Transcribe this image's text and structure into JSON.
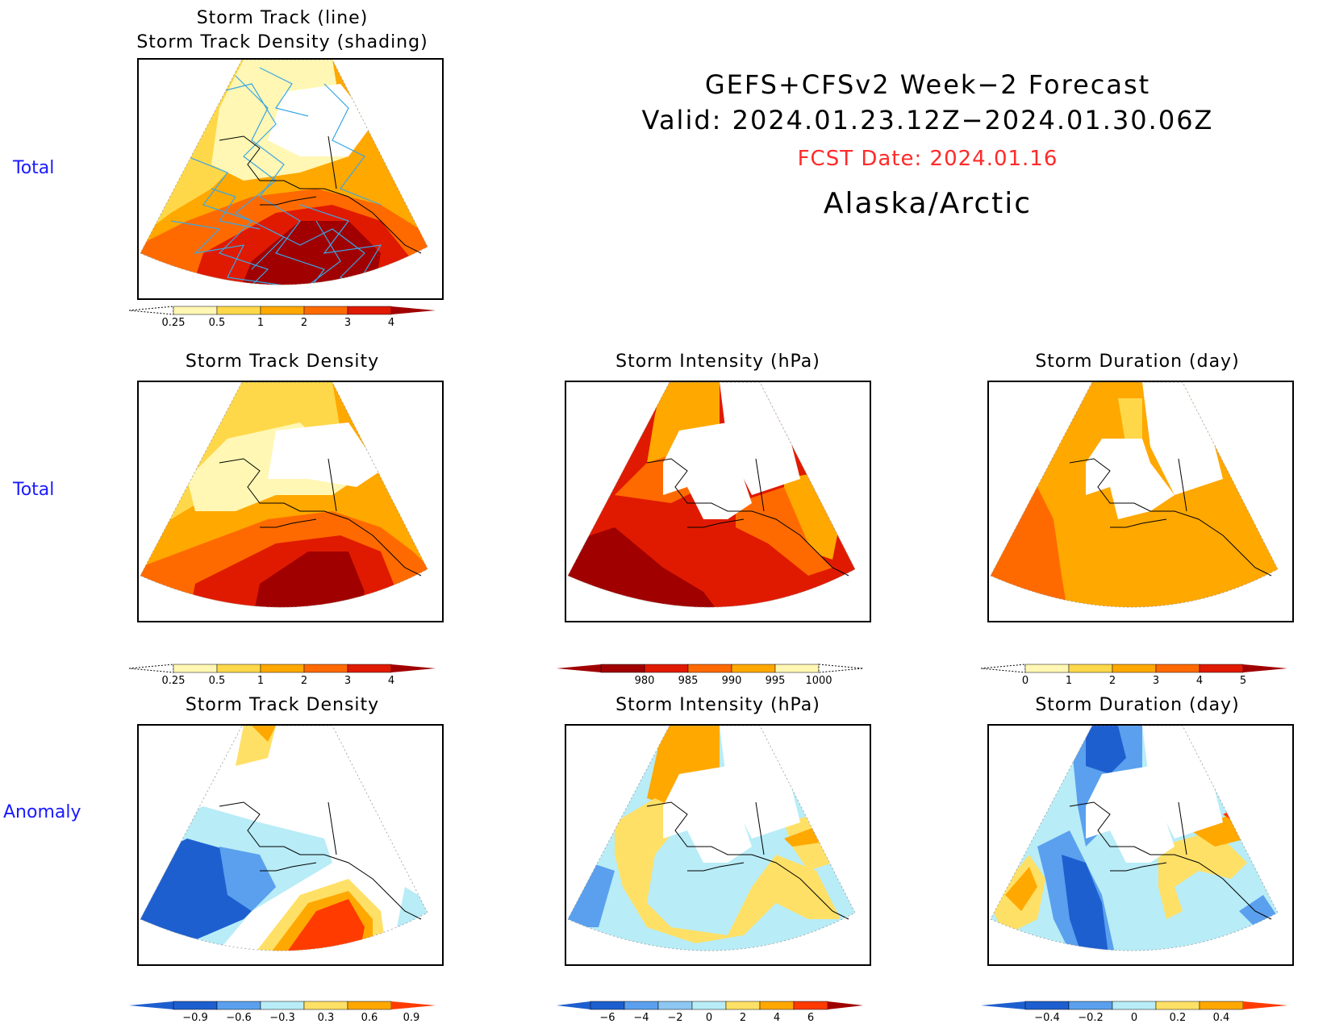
{
  "header": {
    "title": "GEFS+CFSv2 Week−2 Forecast",
    "valid": "Valid: 2024.01.23.12Z−2024.01.30.06Z",
    "fcst_date": "FCST Date: 2024.01.16",
    "region": "Alaska/Arctic"
  },
  "rows": {
    "row1": "Total",
    "row2": "Total",
    "row3": "Anomaly"
  },
  "panels": {
    "p1": {
      "title_line1": "Storm Track (line)",
      "title_line2": "Storm Track Density (shading)"
    },
    "p2": {
      "title": "Storm Track Density"
    },
    "p3": {
      "title": "Storm Intensity (hPa)"
    },
    "p4": {
      "title": "Storm Duration (day)"
    },
    "p5": {
      "title": "Storm Track Density"
    },
    "p6": {
      "title": "Storm Intensity (hPa)"
    },
    "p7": {
      "title": "Storm Duration (day)"
    }
  },
  "colors": {
    "warm": [
      "#fff7b3",
      "#ffd84a",
      "#ffa800",
      "#ff6a00",
      "#e01a00",
      "#a00000"
    ],
    "cool": [
      "#1e5fd0",
      "#5aa0ee",
      "#b8ecf7"
    ],
    "track_line": "#3aa6e6",
    "title_text": "#000000",
    "row_label": "#1a1aff",
    "fcst_text": "#ff2a2a"
  },
  "chart_data": [
    {
      "type": "heatmap",
      "id": "storm-track-density-total-with-tracks",
      "title": "Storm Track (line) / Storm Track Density (shading)",
      "colorbar": {
        "ticks": [
          "0.25",
          "0.5",
          "1",
          "2",
          "3",
          "4"
        ],
        "colors": [
          "#fff7b3",
          "#ffd84a",
          "#ffa800",
          "#ff6a00",
          "#e01a00",
          "#a00000"
        ],
        "extend": "both"
      }
    },
    {
      "type": "heatmap",
      "id": "storm-track-density-total",
      "title": "Storm Track Density",
      "colorbar": {
        "ticks": [
          "0.25",
          "0.5",
          "1",
          "2",
          "3",
          "4"
        ],
        "colors": [
          "#fff7b3",
          "#ffd84a",
          "#ffa800",
          "#ff6a00",
          "#e01a00",
          "#a00000"
        ],
        "extend": "both"
      }
    },
    {
      "type": "heatmap",
      "id": "storm-intensity-total",
      "title": "Storm Intensity (hPa)",
      "colorbar": {
        "ticks": [
          "980",
          "985",
          "990",
          "995",
          "1000"
        ],
        "colors": [
          "#a00000",
          "#e01a00",
          "#ff6a00",
          "#ffa800",
          "#fff7b3"
        ],
        "extend": "both"
      }
    },
    {
      "type": "heatmap",
      "id": "storm-duration-total",
      "title": "Storm Duration (day)",
      "colorbar": {
        "ticks": [
          "0",
          "1",
          "2",
          "3",
          "4",
          "5"
        ],
        "colors": [
          "#fff7b3",
          "#ffd84a",
          "#ffa800",
          "#ff6a00",
          "#e01a00",
          "#a00000"
        ],
        "extend": "both"
      }
    },
    {
      "type": "heatmap",
      "id": "storm-track-density-anomaly",
      "title": "Storm Track Density",
      "colorbar": {
        "ticks": [
          "−0.9",
          "−0.6",
          "−0.3",
          "0.3",
          "0.6",
          "0.9"
        ],
        "colors": [
          "#1e5fd0",
          "#5aa0ee",
          "#b8ecf7",
          "#ffffff",
          "#ffe066",
          "#ffa800",
          "#ff3b00"
        ],
        "extend": "both"
      }
    },
    {
      "type": "heatmap",
      "id": "storm-intensity-anomaly",
      "title": "Storm Intensity (hPa)",
      "colorbar": {
        "ticks": [
          "−6",
          "−4",
          "−2",
          "0",
          "2",
          "4",
          "6"
        ],
        "colors": [
          "#1e5fd0",
          "#5aa0ee",
          "#8cc8f2",
          "#b8ecf7",
          "#ffe066",
          "#ffa800",
          "#ff3b00",
          "#a00000"
        ],
        "extend": "both"
      }
    },
    {
      "type": "heatmap",
      "id": "storm-duration-anomaly",
      "title": "Storm Duration (day)",
      "colorbar": {
        "ticks": [
          "−0.4",
          "−0.2",
          "0",
          "0.2",
          "0.4"
        ],
        "colors": [
          "#1e5fd0",
          "#5aa0ee",
          "#b8ecf7",
          "#ffe066",
          "#ffa800",
          "#ff3b00"
        ],
        "extend": "both"
      }
    }
  ]
}
